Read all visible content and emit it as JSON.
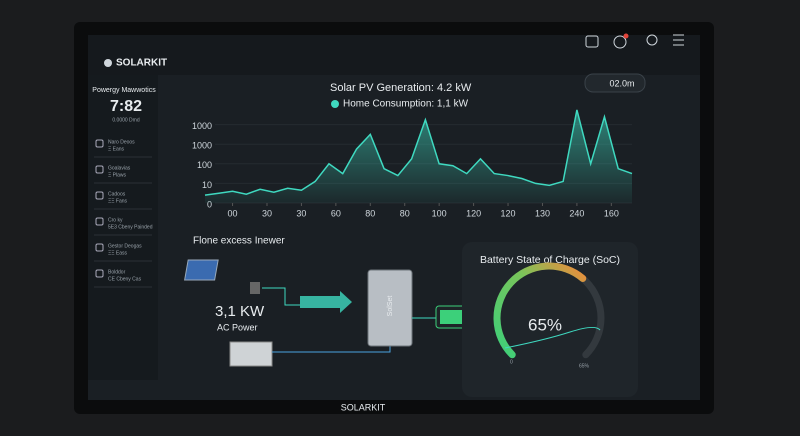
{
  "header": {
    "brand": "SOLARKIT",
    "time_badge": "02.0m"
  },
  "sidebar": {
    "title": "Powergy Mawwotics",
    "clock": "7:82",
    "clock_sub": "0.0000 Dmd",
    "items": [
      {
        "title": "Naro Deoos",
        "sub": "Ξ Eans"
      },
      {
        "title": "Goalavias",
        "sub": "Ξ Plaws"
      },
      {
        "title": "Cadoos",
        "sub": "ΞΞ Fans"
      },
      {
        "title": "Cro ky",
        "sub": "5E3 Cbeny Painded"
      },
      {
        "title": "Gestor Deogas",
        "sub": "ΞΞ Eass"
      },
      {
        "title": "Bolddor",
        "sub": "CE Cbeny Cas"
      }
    ]
  },
  "chart": {
    "type": "area",
    "title": "Solar PV Generation: 4.2 kW",
    "subtitle": "Home Consumption: 1,1 kW",
    "color": "#3fd9c0",
    "x": [
      -0.8,
      -0.4,
      0,
      0.4,
      0.8,
      1.2,
      1.6,
      2,
      2.4,
      2.8,
      3.2,
      3.6,
      4,
      4.4,
      4.8,
      5.2,
      5.6,
      6,
      6.4,
      6.8,
      7.2,
      7.6,
      8,
      8.4,
      8.8,
      9.2,
      9.6,
      10,
      10.4,
      10.8,
      11.2,
      11.6
    ],
    "values": [
      8,
      10,
      12,
      9,
      14,
      11,
      15,
      13,
      22,
      40,
      30,
      55,
      70,
      35,
      28,
      45,
      85,
      40,
      38,
      30,
      45,
      30,
      28,
      25,
      20,
      18,
      22,
      95,
      40,
      88,
      35,
      30
    ],
    "xlim": [
      -0.8,
      11.6
    ],
    "ylim": [
      0,
      100
    ],
    "xticks": [
      {
        "value": 0,
        "label": "00"
      },
      {
        "value": 1,
        "label": "30"
      },
      {
        "value": 2,
        "label": "30"
      },
      {
        "value": 3,
        "label": "60"
      },
      {
        "value": 4,
        "label": "80"
      },
      {
        "value": 5,
        "label": "80"
      },
      {
        "value": 6,
        "label": "100"
      },
      {
        "value": 7,
        "label": "120"
      },
      {
        "value": 8,
        "label": "120"
      },
      {
        "value": 9,
        "label": "130"
      },
      {
        "value": 10,
        "label": "240"
      },
      {
        "value": 11,
        "label": "160"
      }
    ],
    "yticks": [
      0,
      {
        "value": 20,
        "label": "10"
      },
      {
        "value": 40,
        "label": "100"
      },
      {
        "value": 60,
        "label": "1000"
      },
      {
        "value": 80,
        "label": "1000"
      }
    ]
  },
  "flow": {
    "title": "Flone excess Inewer",
    "power": "3,1 KW",
    "power_label": "AC Power",
    "inverter": "SolSet"
  },
  "battery": {
    "title": "Battery State of Charge (SoC)",
    "value": 65,
    "value_label": "65%",
    "lim": [
      0,
      100
    ],
    "min_label": "0",
    "max_label": "65%"
  },
  "footer": {
    "brand": "SOLARKIT"
  }
}
